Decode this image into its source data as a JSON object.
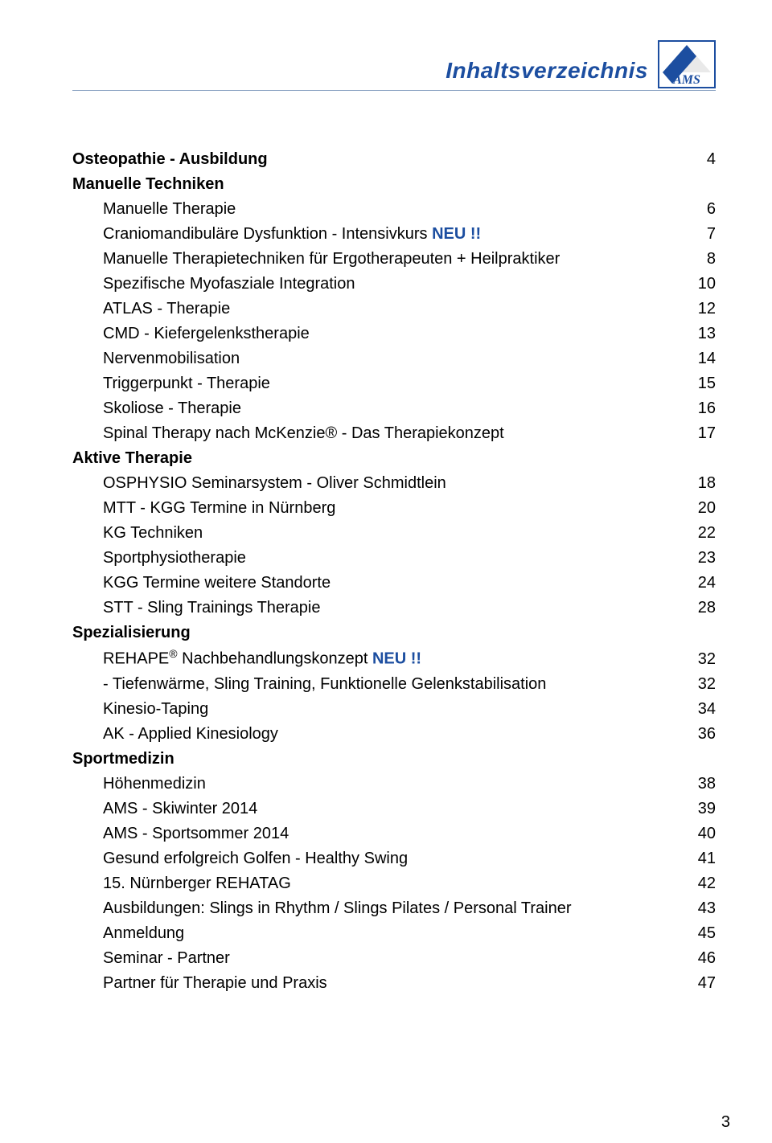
{
  "header": {
    "title": "Inhaltsverzeichnis",
    "logo_text": "AMS",
    "logo_colors": {
      "border": "#1c4ea0",
      "accent": "#1c4ea0",
      "bg": "#ffffff",
      "band": "#e9e9e9"
    }
  },
  "colors": {
    "text": "#000000",
    "heading": "#1c4ea0",
    "rule": "#8aa3c2",
    "badge": "#1c4ea0",
    "background": "#ffffff"
  },
  "typography": {
    "base_family": "Verdana",
    "heading_size_pt": 21,
    "body_size_pt": 15,
    "line_height": 1.55
  },
  "toc": [
    {
      "type": "row-bold",
      "label": "Osteopathie - Ausbildung",
      "page": "4"
    },
    {
      "type": "heading",
      "label": "Manuelle Techniken"
    },
    {
      "type": "row",
      "label": "Manuelle Therapie",
      "page": "6"
    },
    {
      "type": "row-badge",
      "label": "Craniomandibuläre Dysfunktion - Intensivkurs",
      "badge": "NEU !!",
      "page": "7"
    },
    {
      "type": "row",
      "label": "Manuelle Therapietechniken für Ergotherapeuten + Heilpraktiker",
      "page": "8"
    },
    {
      "type": "row",
      "label": "Spezifische Myofasziale Integration",
      "page": "10"
    },
    {
      "type": "row",
      "label": "ATLAS - Therapie",
      "page": "12"
    },
    {
      "type": "row",
      "label": "CMD - Kiefergelenkstherapie",
      "page": "13"
    },
    {
      "type": "row",
      "label": "Nervenmobilisation",
      "page": "14"
    },
    {
      "type": "row",
      "label": "Triggerpunkt - Therapie",
      "page": "15"
    },
    {
      "type": "row",
      "label": "Skoliose - Therapie",
      "page": "16"
    },
    {
      "type": "row",
      "label": "Spinal Therapy nach McKenzie® - Das Therapiekonzept",
      "page": "17"
    },
    {
      "type": "heading",
      "label": "Aktive Therapie"
    },
    {
      "type": "row",
      "label": "OSPHYSIO Seminarsystem - Oliver Schmidtlein",
      "page": "18"
    },
    {
      "type": "row",
      "label": "MTT - KGG Termine in Nürnberg",
      "page": "20"
    },
    {
      "type": "row",
      "label": "KG Techniken",
      "page": "22"
    },
    {
      "type": "row",
      "label": "Sportphysiotherapie",
      "page": "23"
    },
    {
      "type": "row",
      "label": "KGG Termine weitere Standorte",
      "page": "24"
    },
    {
      "type": "row",
      "label": "STT - Sling Trainings Therapie",
      "page": "28"
    },
    {
      "type": "heading",
      "label": "Spezialisierung"
    },
    {
      "type": "row-badge-sup",
      "label_pre": "REHAPE",
      "sup": "®",
      "label_post": " Nachbehandlungskonzept",
      "badge": "NEU !!",
      "page": "32"
    },
    {
      "type": "row",
      "label": "- Tiefenwärme, Sling Training, Funktionelle Gelenkstabilisation",
      "page": "32"
    },
    {
      "type": "row",
      "label": "Kinesio-Taping",
      "page": "34"
    },
    {
      "type": "row",
      "label": "AK - Applied Kinesiology",
      "page": "36"
    },
    {
      "type": "heading",
      "label": "Sportmedizin"
    },
    {
      "type": "row",
      "label": "Höhenmedizin",
      "page": "38"
    },
    {
      "type": "row",
      "label": "AMS - Skiwinter 2014",
      "page": "39"
    },
    {
      "type": "row",
      "label": "AMS - Sportsommer 2014",
      "page": "40"
    },
    {
      "type": "row",
      "label": "Gesund erfolgreich Golfen - Healthy Swing",
      "page": "41"
    },
    {
      "type": "row",
      "label": "15. Nürnberger REHATAG",
      "page": "42"
    },
    {
      "type": "row",
      "label": "Ausbildungen: Slings in Rhythm / Slings Pilates / Personal Trainer",
      "page": "43"
    },
    {
      "type": "row",
      "label": "Anmeldung",
      "page": "45"
    },
    {
      "type": "row",
      "label": "Seminar - Partner",
      "page": "46"
    },
    {
      "type": "row",
      "label": "Partner für Therapie und Praxis",
      "page": "47"
    }
  ],
  "page_number": "3"
}
